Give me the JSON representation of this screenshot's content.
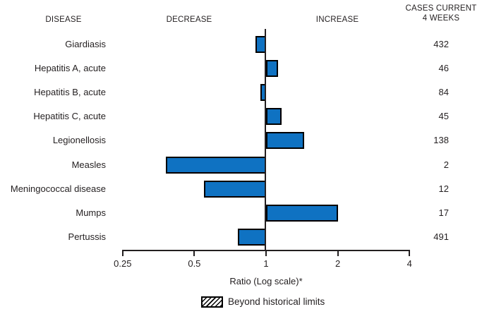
{
  "header": {
    "disease_col": "DISEASE",
    "decrease_col": "DECREASE",
    "increase_col": "INCREASE",
    "cases_col_line1": "CASES CURRENT",
    "cases_col_line2": "4 WEEKS"
  },
  "chart_data": {
    "type": "bar",
    "orientation": "horizontal",
    "scale": "log",
    "baseline_ratio": 1,
    "categories": [
      "Giardiasis",
      "Hepatitis A, acute",
      "Hepatitis B, acute",
      "Hepatitis C, acute",
      "Legionellosis",
      "Measles",
      "Meningococcal disease",
      "Mumps",
      "Pertussis"
    ],
    "ratios": [
      0.9,
      1.12,
      0.95,
      1.16,
      1.45,
      0.38,
      0.55,
      2.0,
      0.76
    ],
    "cases_current_4_weeks": [
      432,
      46,
      84,
      45,
      138,
      2,
      12,
      17,
      491
    ],
    "beyond_historical_limits": [
      false,
      false,
      false,
      false,
      false,
      false,
      false,
      false,
      false
    ],
    "x_ticks": [
      0.25,
      0.5,
      1,
      2,
      4
    ],
    "x_tick_labels": [
      "0.25",
      "0.5",
      "1",
      "2",
      "4"
    ],
    "xlim": [
      0.25,
      4
    ],
    "xlabel": "Ratio (Log scale)*",
    "legend": [
      {
        "label": "Beyond historical limits",
        "style": "hatched"
      }
    ]
  },
  "colors": {
    "bar_fill": "#0f72c2",
    "bar_border": "#000000",
    "axis": "#231f20",
    "text": "#231f20"
  }
}
